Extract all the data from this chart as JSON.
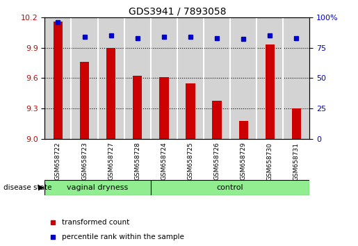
{
  "title": "GDS3941 / 7893058",
  "samples": [
    "GSM658722",
    "GSM658723",
    "GSM658727",
    "GSM658728",
    "GSM658724",
    "GSM658725",
    "GSM658726",
    "GSM658729",
    "GSM658730",
    "GSM658731"
  ],
  "red_values": [
    10.16,
    9.76,
    9.9,
    9.62,
    9.61,
    9.55,
    9.38,
    9.18,
    9.93,
    9.3
  ],
  "blue_values": [
    96,
    84,
    85,
    83,
    84,
    84,
    83,
    82,
    85,
    83
  ],
  "group1_label": "vaginal dryness",
  "group2_label": "control",
  "group1_count": 4,
  "group2_count": 6,
  "ylim_left": [
    9.0,
    10.2
  ],
  "ylim_right": [
    0,
    100
  ],
  "yticks_left": [
    9.0,
    9.3,
    9.6,
    9.9,
    10.2
  ],
  "yticks_right": [
    0,
    25,
    50,
    75,
    100
  ],
  "red_color": "#cc0000",
  "blue_color": "#0000cc",
  "green_bg": "#90ee90",
  "cell_bg": "#d3d3d3",
  "legend_red": "transformed count",
  "legend_blue": "percentile rank within the sample",
  "disease_state_label": "disease state"
}
